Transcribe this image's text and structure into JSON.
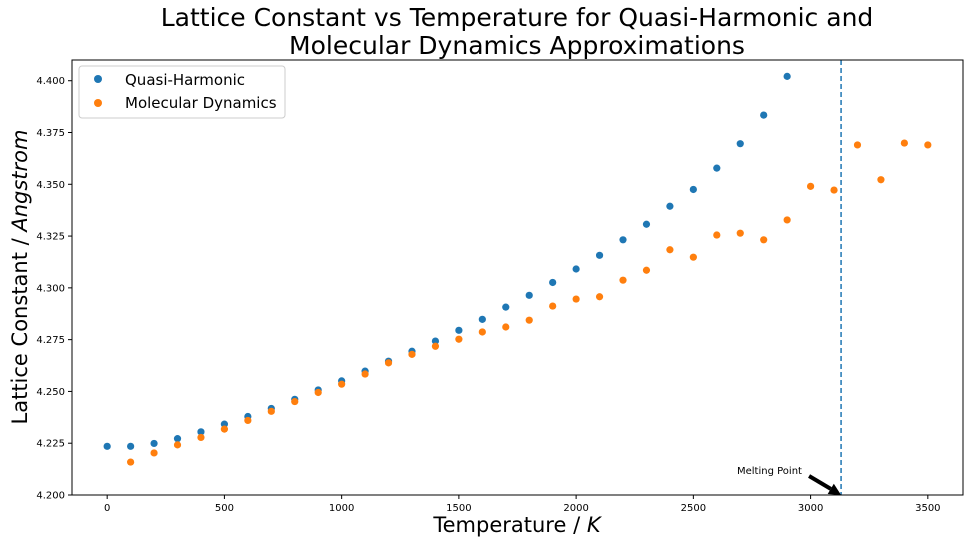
{
  "colors": {
    "quasi_harmonic": "#1f77b4",
    "molecular_dynamics": "#ff7f0e",
    "axes": "#000000",
    "background": "#ffffff"
  },
  "chart_data": {
    "type": "scatter",
    "title_lines": [
      "Lattice Constant vs Temperature for Quasi-Harmonic and",
      "Molecular Dynamics Approximations"
    ],
    "xlabel_prefix": "Temperature / ",
    "xlabel_unit": "K",
    "ylabel_prefix": "Lattice Constant / ",
    "ylabel_unit": "Angstrom",
    "xlim": [
      -150,
      3650
    ],
    "ylim": [
      4.2,
      4.41
    ],
    "xticks": [
      0,
      500,
      1000,
      1500,
      2000,
      2500,
      3000,
      3500
    ],
    "xtick_labels": [
      "0",
      "500",
      "1000",
      "1500",
      "2000",
      "2500",
      "3000",
      "3500"
    ],
    "yticks": [
      4.2,
      4.225,
      4.25,
      4.275,
      4.3,
      4.325,
      4.35,
      4.375,
      4.4
    ],
    "ytick_labels": [
      "4.200",
      "4.225",
      "4.250",
      "4.275",
      "4.300",
      "4.325",
      "4.350",
      "4.375",
      "4.400"
    ],
    "grid": false,
    "legend_position": "top-left",
    "series": [
      {
        "name": "Quasi-Harmonic",
        "color": "#1f77b4",
        "x": [
          0,
          100,
          200,
          300,
          400,
          500,
          600,
          700,
          800,
          900,
          1000,
          1100,
          1200,
          1300,
          1400,
          1500,
          1600,
          1700,
          1800,
          1900,
          2000,
          2100,
          2200,
          2300,
          2400,
          2500,
          2600,
          2700,
          2800,
          2900
        ],
        "y": [
          4.2235,
          4.2235,
          4.2249,
          4.2272,
          4.2305,
          4.2342,
          4.2379,
          4.2418,
          4.2462,
          4.2507,
          4.2551,
          4.2598,
          4.2646,
          4.2694,
          4.2743,
          4.2795,
          4.2848,
          4.2907,
          4.2964,
          4.3026,
          4.3091,
          4.3157,
          4.3232,
          4.3307,
          4.3394,
          4.3475,
          4.3578,
          4.3696,
          4.3834,
          4.4021
        ]
      },
      {
        "name": "Molecular Dynamics",
        "color": "#ff7f0e",
        "x": [
          100,
          200,
          300,
          400,
          500,
          600,
          700,
          800,
          900,
          1000,
          1100,
          1200,
          1300,
          1400,
          1500,
          1600,
          1700,
          1800,
          1900,
          2000,
          2100,
          2200,
          2300,
          2400,
          2500,
          2600,
          2700,
          2800,
          2900,
          3000,
          3100,
          3200,
          3300,
          3400,
          3500
        ],
        "y": [
          4.2159,
          4.2203,
          4.2242,
          4.2278,
          4.2318,
          4.236,
          4.2404,
          4.2451,
          4.2495,
          4.2535,
          4.2584,
          4.2638,
          4.2679,
          4.2718,
          4.2752,
          4.2787,
          4.2811,
          4.2844,
          4.2912,
          4.2946,
          4.2957,
          4.3037,
          4.3085,
          4.3184,
          4.3148,
          4.3255,
          4.3264,
          4.3232,
          4.3328,
          4.349,
          4.3472,
          4.369,
          4.3522,
          4.3699,
          4.369
        ]
      }
    ],
    "melting_line_x": 3130,
    "annotation": {
      "text": "Melting Point",
      "arrow_tip": [
        3130,
        4.2
      ],
      "text_anchor": [
        2720,
        4.2093
      ]
    }
  }
}
